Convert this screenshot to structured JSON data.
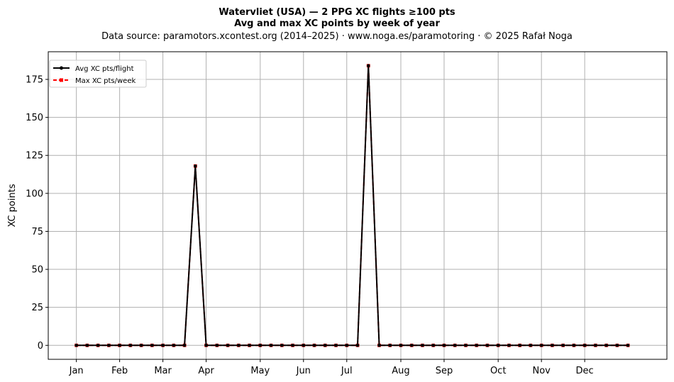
{
  "chart_data": {
    "type": "line",
    "title": "Watervliet (USA)  —  2 PPG XC flights ≥100 pts",
    "subtitle": "Avg and max XC points by week of year",
    "source_line": "Data source: paramotors.xcontest.org (2014–2025)  ·  www.noga.es/paramotoring  ·  © 2025 Rafał Noga",
    "xlabel": "",
    "ylabel": "XC points",
    "x_ticks": [
      {
        "label": "Jan",
        "week": 1
      },
      {
        "label": "Feb",
        "week": 5
      },
      {
        "label": "Mar",
        "week": 9
      },
      {
        "label": "Apr",
        "week": 13
      },
      {
        "label": "May",
        "week": 18
      },
      {
        "label": "Jun",
        "week": 22
      },
      {
        "label": "Jul",
        "week": 26
      },
      {
        "label": "Aug",
        "week": 31
      },
      {
        "label": "Sep",
        "week": 35
      },
      {
        "label": "Oct",
        "week": 40
      },
      {
        "label": "Nov",
        "week": 44
      },
      {
        "label": "Dec",
        "week": 48
      }
    ],
    "y_ticks": [
      0,
      25,
      50,
      75,
      100,
      125,
      150,
      175
    ],
    "xlim": [
      -1.6,
      55.6
    ],
    "ylim": [
      -9.2,
      193.2
    ],
    "grid": true,
    "legend_position": "top-left",
    "series": [
      {
        "name": "Avg XC pts/flight",
        "color": "#000000",
        "style": "solid",
        "marker": "circle",
        "x": [
          1,
          2,
          3,
          4,
          5,
          6,
          7,
          8,
          9,
          10,
          11,
          12,
          13,
          14,
          15,
          16,
          17,
          18,
          19,
          20,
          21,
          22,
          23,
          24,
          25,
          26,
          27,
          28,
          29,
          30,
          31,
          32,
          33,
          34,
          35,
          36,
          37,
          38,
          39,
          40,
          41,
          42,
          43,
          44,
          45,
          46,
          47,
          48,
          49,
          50,
          51,
          52
        ],
        "values": [
          0,
          0,
          0,
          0,
          0,
          0,
          0,
          0,
          0,
          0,
          0,
          118,
          0,
          0,
          0,
          0,
          0,
          0,
          0,
          0,
          0,
          0,
          0,
          0,
          0,
          0,
          0,
          184,
          0,
          0,
          0,
          0,
          0,
          0,
          0,
          0,
          0,
          0,
          0,
          0,
          0,
          0,
          0,
          0,
          0,
          0,
          0,
          0,
          0,
          0,
          0,
          0
        ]
      },
      {
        "name": "Max XC pts/week",
        "color": "#ff0000",
        "style": "dashed",
        "marker": "square",
        "x": [
          1,
          2,
          3,
          4,
          5,
          6,
          7,
          8,
          9,
          10,
          11,
          12,
          13,
          14,
          15,
          16,
          17,
          18,
          19,
          20,
          21,
          22,
          23,
          24,
          25,
          26,
          27,
          28,
          29,
          30,
          31,
          32,
          33,
          34,
          35,
          36,
          37,
          38,
          39,
          40,
          41,
          42,
          43,
          44,
          45,
          46,
          47,
          48,
          49,
          50,
          51,
          52
        ],
        "values": [
          0,
          0,
          0,
          0,
          0,
          0,
          0,
          0,
          0,
          0,
          0,
          118,
          0,
          0,
          0,
          0,
          0,
          0,
          0,
          0,
          0,
          0,
          0,
          0,
          0,
          0,
          0,
          184,
          0,
          0,
          0,
          0,
          0,
          0,
          0,
          0,
          0,
          0,
          0,
          0,
          0,
          0,
          0,
          0,
          0,
          0,
          0,
          0,
          0,
          0,
          0,
          0
        ]
      }
    ]
  }
}
